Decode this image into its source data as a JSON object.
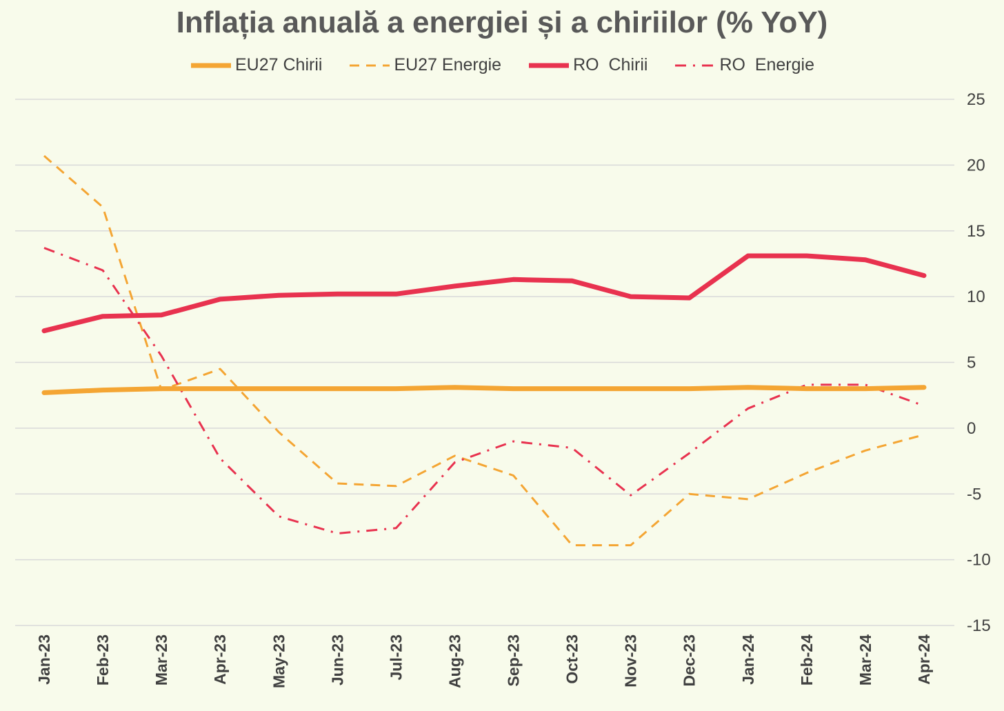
{
  "chart_data": {
    "type": "line",
    "title": "Inflația anuală a energiei și a chiriilor (% YoY)",
    "categories": [
      "Jan-23",
      "Feb-23",
      "Mar-23",
      "Apr-23",
      "May-23",
      "Jun-23",
      "Jul-23",
      "Aug-23",
      "Sep-23",
      "Oct-23",
      "Nov-23",
      "Dec-23",
      "Jan-24",
      "Feb-24",
      "Mar-24",
      "Apr-24"
    ],
    "ylim": [
      -15,
      25
    ],
    "yticks": [
      25,
      20,
      15,
      10,
      5,
      0,
      -5,
      -10,
      -15
    ],
    "y_axis_position": "right",
    "grid": true,
    "legend_position": "top",
    "series": [
      {
        "name": "EU27 Chirii",
        "color": "#f4a533",
        "style": "solid",
        "values": [
          2.7,
          2.9,
          3.0,
          3.0,
          3.0,
          3.0,
          3.0,
          3.1,
          3.0,
          3.0,
          3.0,
          3.0,
          3.1,
          3.0,
          3.0,
          3.1
        ]
      },
      {
        "name": "EU27 Energie",
        "color": "#f4a533",
        "style": "dashed",
        "values": [
          20.7,
          16.8,
          2.9,
          4.5,
          -0.3,
          -4.2,
          -4.4,
          -2.1,
          -3.6,
          -8.9,
          -8.9,
          -5.0,
          -5.4,
          -3.4,
          -1.7,
          -0.5
        ]
      },
      {
        "name": "RO  Chirii",
        "color": "#e8324f",
        "style": "solid",
        "values": [
          7.4,
          8.5,
          8.6,
          9.8,
          10.1,
          10.2,
          10.2,
          10.8,
          11.3,
          11.2,
          10.0,
          9.9,
          13.1,
          13.1,
          12.8,
          11.6
        ]
      },
      {
        "name": "RO  Energie",
        "color": "#e8324f",
        "style": "dashdot",
        "values": [
          13.7,
          12.0,
          5.5,
          -2.3,
          -6.7,
          -8.0,
          -7.6,
          -2.6,
          -1.0,
          -1.5,
          -5.1,
          -1.9,
          1.5,
          3.3,
          3.3,
          1.7
        ]
      }
    ]
  }
}
